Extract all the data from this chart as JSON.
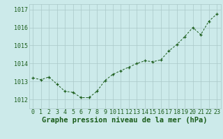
{
  "x": [
    0,
    1,
    2,
    3,
    4,
    5,
    6,
    7,
    8,
    9,
    10,
    11,
    12,
    13,
    14,
    15,
    16,
    17,
    18,
    19,
    20,
    21,
    22,
    23
  ],
  "y": [
    1013.2,
    1013.1,
    1013.25,
    1012.85,
    1012.45,
    1012.4,
    1012.1,
    1012.1,
    1012.45,
    1013.05,
    1013.4,
    1013.6,
    1013.8,
    1014.0,
    1014.15,
    1014.1,
    1014.2,
    1014.7,
    1015.05,
    1015.5,
    1016.0,
    1015.6,
    1016.35,
    1016.75
  ],
  "line_color": "#1a5c1a",
  "marker_color": "#1a5c1a",
  "bg_color": "#cceaea",
  "grid_color": "#aac8c8",
  "xlabel": "Graphe pression niveau de la mer (hPa)",
  "xlabel_color": "#1a5c1a",
  "tick_color": "#1a5c1a",
  "ylim": [
    1011.5,
    1017.3
  ],
  "yticks": [
    1012,
    1013,
    1014,
    1015,
    1016,
    1017
  ],
  "xticks": [
    0,
    1,
    2,
    3,
    4,
    5,
    6,
    7,
    8,
    9,
    10,
    11,
    12,
    13,
    14,
    15,
    16,
    17,
    18,
    19,
    20,
    21,
    22,
    23
  ],
  "xlabel_fontsize": 7.5,
  "tick_fontsize": 6.0
}
